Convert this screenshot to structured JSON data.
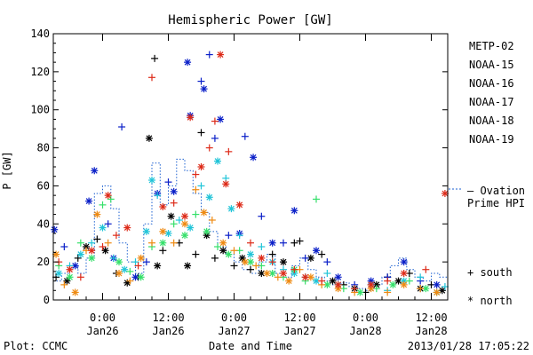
{
  "chart_data": {
    "type": "scatter",
    "title": "Hemispheric Power [GW]",
    "xlabel": "Date and Time",
    "ylabel": "P [GW]",
    "ylim": [
      0,
      140
    ],
    "yticks": [
      0,
      20,
      40,
      60,
      80,
      100,
      120,
      140
    ],
    "xlim_hours": [
      -9,
      63
    ],
    "x_axis_origin": "2013-01-26 00:00 UT",
    "xticks": [
      {
        "hours": 0,
        "time": "0:00",
        "date": "Jan26"
      },
      {
        "hours": 12,
        "time": "12:00",
        "date": "Jan26"
      },
      {
        "hours": 24,
        "time": "0:00",
        "date": "Jan27"
      },
      {
        "hours": 36,
        "time": "12:00",
        "date": "Jan27"
      },
      {
        "hours": 48,
        "time": "0:00",
        "date": "Jan28"
      },
      {
        "hours": 60,
        "time": "12:00",
        "date": "Jan28"
      }
    ],
    "legend_position": "right",
    "marker_legend": {
      "south": "+ south",
      "north": "* north"
    },
    "reference_series": {
      "name": "Ovation Prime HPI",
      "label_line1": "— Ovation",
      "label_line2": "Prime HPI",
      "color": "#1a5fd0",
      "style": "dotted-step"
    },
    "series": [
      {
        "name": "METP-02",
        "color": "#000000",
        "points": [
          [
            -8.5,
            12,
            "+"
          ],
          [
            -6.5,
            10,
            "*"
          ],
          [
            -4.5,
            22,
            "+"
          ],
          [
            -3,
            28,
            "*"
          ],
          [
            -1,
            32,
            "+"
          ],
          [
            0.5,
            26,
            "*"
          ],
          [
            2.5,
            14,
            "+"
          ],
          [
            4.5,
            9,
            "*"
          ],
          [
            6.5,
            12,
            "+"
          ],
          [
            8.5,
            85,
            "*"
          ],
          [
            9.5,
            127,
            "+"
          ],
          [
            10,
            18,
            "*"
          ],
          [
            11,
            26,
            "+"
          ],
          [
            12.5,
            44,
            "*"
          ],
          [
            14,
            30,
            "+"
          ],
          [
            15.5,
            18,
            "*"
          ],
          [
            17,
            24,
            "+"
          ],
          [
            18,
            88,
            "+"
          ],
          [
            19,
            34,
            "*"
          ],
          [
            20.5,
            22,
            "+"
          ],
          [
            22,
            26,
            "*"
          ],
          [
            24,
            18,
            "+"
          ],
          [
            25.5,
            22,
            "*"
          ],
          [
            27,
            16,
            "+"
          ],
          [
            29,
            14,
            "*"
          ],
          [
            31,
            24,
            "+"
          ],
          [
            33,
            20,
            "*"
          ],
          [
            35,
            30,
            "+"
          ],
          [
            36,
            31,
            "+"
          ],
          [
            38,
            22,
            "*"
          ],
          [
            40,
            24,
            "+"
          ],
          [
            42,
            10,
            "*"
          ],
          [
            44,
            8,
            "+"
          ],
          [
            46,
            6,
            "*"
          ],
          [
            48,
            4,
            "+"
          ],
          [
            50,
            8,
            "*"
          ],
          [
            52,
            12,
            "+"
          ],
          [
            54,
            10,
            "*"
          ],
          [
            56,
            14,
            "+"
          ],
          [
            58,
            6,
            "*"
          ],
          [
            60,
            8,
            "+"
          ],
          [
            62,
            5,
            "*"
          ]
        ]
      },
      {
        "name": "NOAA-15",
        "color": "#0a1fc8",
        "points": [
          [
            -8.8,
            37,
            "*"
          ],
          [
            -7,
            28,
            "+"
          ],
          [
            -5,
            18,
            "*"
          ],
          [
            -2.5,
            52,
            "*"
          ],
          [
            -1.5,
            68,
            "*"
          ],
          [
            1,
            40,
            "+"
          ],
          [
            2,
            22,
            "*"
          ],
          [
            3.5,
            91,
            "+"
          ],
          [
            6,
            12,
            "*"
          ],
          [
            8,
            20,
            "+"
          ],
          [
            10,
            56,
            "*"
          ],
          [
            12,
            62,
            "+"
          ],
          [
            13,
            57,
            "*"
          ],
          [
            15.5,
            125,
            "*"
          ],
          [
            16,
            97,
            "*"
          ],
          [
            18,
            115,
            "+"
          ],
          [
            18.5,
            111,
            "*"
          ],
          [
            19.5,
            129,
            "+"
          ],
          [
            20.5,
            85,
            "+"
          ],
          [
            21.5,
            95,
            "*"
          ],
          [
            23,
            34,
            "+"
          ],
          [
            25,
            35,
            "*"
          ],
          [
            26,
            86,
            "+"
          ],
          [
            27.5,
            75,
            "*"
          ],
          [
            29,
            44,
            "+"
          ],
          [
            31,
            30,
            "*"
          ],
          [
            33,
            30,
            "+"
          ],
          [
            35,
            47,
            "*"
          ],
          [
            37,
            22,
            "+"
          ],
          [
            39,
            26,
            "*"
          ],
          [
            41,
            20,
            "+"
          ],
          [
            43,
            12,
            "*"
          ],
          [
            46,
            8,
            "+"
          ],
          [
            49,
            10,
            "*"
          ],
          [
            52,
            12,
            "+"
          ],
          [
            55,
            20,
            "*"
          ],
          [
            58,
            10,
            "+"
          ],
          [
            61,
            8,
            "*"
          ]
        ]
      },
      {
        "name": "NOAA-16",
        "color": "#20c4d8",
        "points": [
          [
            -8,
            14,
            "*"
          ],
          [
            -6,
            18,
            "+"
          ],
          [
            -4,
            24,
            "*"
          ],
          [
            -2,
            30,
            "+"
          ],
          [
            0,
            38,
            "*"
          ],
          [
            2,
            22,
            "+"
          ],
          [
            4,
            16,
            "*"
          ],
          [
            6,
            20,
            "+"
          ],
          [
            8,
            36,
            "*"
          ],
          [
            9,
            63,
            "*"
          ],
          [
            10,
            55,
            "+"
          ],
          [
            12,
            35,
            "*"
          ],
          [
            14,
            42,
            "+"
          ],
          [
            16,
            38,
            "*"
          ],
          [
            18,
            60,
            "+"
          ],
          [
            19.5,
            54,
            "*"
          ],
          [
            21,
            73,
            "*"
          ],
          [
            22.5,
            64,
            "+"
          ],
          [
            23.5,
            48,
            "*"
          ],
          [
            25,
            34,
            "+"
          ],
          [
            27,
            24,
            "*"
          ],
          [
            29,
            28,
            "+"
          ],
          [
            31,
            20,
            "*"
          ],
          [
            33,
            16,
            "+"
          ],
          [
            35,
            14,
            "*"
          ],
          [
            37,
            12,
            "+"
          ],
          [
            39,
            10,
            "*"
          ],
          [
            41,
            14,
            "+"
          ],
          [
            43,
            8,
            "*"
          ],
          [
            46,
            6,
            "+"
          ],
          [
            49,
            8,
            "*"
          ],
          [
            52,
            5,
            "+"
          ],
          [
            55,
            10,
            "*"
          ],
          [
            58,
            12,
            "+"
          ],
          [
            61,
            4,
            "*"
          ],
          [
            62.5,
            7,
            "+"
          ]
        ]
      },
      {
        "name": "NOAA-17",
        "color": "#35e06a",
        "points": [
          [
            -8,
            18,
            "+"
          ],
          [
            -6,
            12,
            "*"
          ],
          [
            -4,
            30,
            "+"
          ],
          [
            -2,
            22,
            "*"
          ],
          [
            0,
            50,
            "+"
          ],
          [
            1.5,
            53,
            "+"
          ],
          [
            3,
            20,
            "*"
          ],
          [
            5,
            15,
            "+"
          ],
          [
            7,
            12,
            "*"
          ],
          [
            9,
            28,
            "+"
          ],
          [
            11,
            30,
            "*"
          ],
          [
            13,
            40,
            "+"
          ],
          [
            15,
            34,
            "*"
          ],
          [
            17,
            45,
            "+"
          ],
          [
            19,
            36,
            "*"
          ],
          [
            21,
            28,
            "+"
          ],
          [
            23,
            24,
            "*"
          ],
          [
            25,
            26,
            "+"
          ],
          [
            27,
            20,
            "*"
          ],
          [
            29,
            18,
            "+"
          ],
          [
            31,
            14,
            "*"
          ],
          [
            33,
            12,
            "+"
          ],
          [
            35,
            16,
            "*"
          ],
          [
            37,
            10,
            "+"
          ],
          [
            39,
            53,
            "+"
          ],
          [
            41,
            8,
            "*"
          ],
          [
            44,
            6,
            "+"
          ],
          [
            47,
            4,
            "*"
          ],
          [
            50,
            6,
            "+"
          ],
          [
            53,
            8,
            "*"
          ],
          [
            56,
            10,
            "+"
          ],
          [
            59,
            6,
            "*"
          ]
        ]
      },
      {
        "name": "NOAA-18",
        "color": "#ee8a12",
        "points": [
          [
            -8.5,
            24,
            "*"
          ],
          [
            -7,
            8,
            "+"
          ],
          [
            -5,
            4,
            "*"
          ],
          [
            -3,
            26,
            "+"
          ],
          [
            -1,
            45,
            "*"
          ],
          [
            1,
            30,
            "+"
          ],
          [
            3,
            14,
            "*"
          ],
          [
            5,
            10,
            "+"
          ],
          [
            7,
            22,
            "*"
          ],
          [
            9,
            30,
            "+"
          ],
          [
            11,
            36,
            "*"
          ],
          [
            13,
            30,
            "+"
          ],
          [
            15,
            40,
            "*"
          ],
          [
            17,
            58,
            "+"
          ],
          [
            18.5,
            46,
            "*"
          ],
          [
            20,
            42,
            "+"
          ],
          [
            22,
            30,
            "*"
          ],
          [
            24,
            26,
            "+"
          ],
          [
            26,
            20,
            "*"
          ],
          [
            28,
            18,
            "+"
          ],
          [
            30,
            14,
            "*"
          ],
          [
            32,
            12,
            "+"
          ],
          [
            34,
            10,
            "*"
          ],
          [
            36,
            16,
            "+"
          ],
          [
            38,
            12,
            "*"
          ],
          [
            40,
            8,
            "+"
          ],
          [
            43,
            6,
            "*"
          ],
          [
            46,
            4,
            "+"
          ],
          [
            49,
            6,
            "*"
          ],
          [
            52,
            4,
            "+"
          ],
          [
            55,
            8,
            "*"
          ],
          [
            58,
            6,
            "+"
          ],
          [
            61,
            4,
            "*"
          ]
        ]
      },
      {
        "name": "NOAA-19",
        "color": "#dd2a18",
        "points": [
          [
            -8,
            20,
            "+"
          ],
          [
            -6,
            16,
            "*"
          ],
          [
            -4,
            12,
            "+"
          ],
          [
            -2,
            26,
            "*"
          ],
          [
            0,
            28,
            "+"
          ],
          [
            1,
            55,
            "*"
          ],
          [
            2.5,
            34,
            "+"
          ],
          [
            4.5,
            38,
            "*"
          ],
          [
            6.5,
            18,
            "+"
          ],
          [
            9,
            117,
            "+"
          ],
          [
            11,
            49,
            "*"
          ],
          [
            13,
            51,
            "+"
          ],
          [
            15,
            44,
            "*"
          ],
          [
            16,
            96,
            "*"
          ],
          [
            17,
            66,
            "+"
          ],
          [
            18,
            70,
            "*"
          ],
          [
            19.5,
            80,
            "+"
          ],
          [
            20.5,
            94,
            "+"
          ],
          [
            21.5,
            129,
            "*"
          ],
          [
            22.5,
            61,
            "*"
          ],
          [
            23,
            78,
            "+"
          ],
          [
            25,
            50,
            "*"
          ],
          [
            27,
            30,
            "+"
          ],
          [
            29,
            22,
            "*"
          ],
          [
            31,
            20,
            "+"
          ],
          [
            33,
            14,
            "*"
          ],
          [
            35,
            16,
            "+"
          ],
          [
            37,
            12,
            "*"
          ],
          [
            40,
            10,
            "+"
          ],
          [
            43,
            8,
            "*"
          ],
          [
            46,
            6,
            "+"
          ],
          [
            49,
            8,
            "*"
          ],
          [
            52,
            10,
            "+"
          ],
          [
            55,
            14,
            "*"
          ],
          [
            59,
            16,
            "+"
          ],
          [
            62.5,
            56,
            "*"
          ]
        ]
      }
    ],
    "hpi_steps": [
      [
        -9,
        10
      ],
      [
        -7.5,
        14
      ],
      [
        -6,
        18
      ],
      [
        -4.5,
        14
      ],
      [
        -3,
        22
      ],
      [
        -1.5,
        56
      ],
      [
        0,
        60
      ],
      [
        1.5,
        48
      ],
      [
        3,
        30
      ],
      [
        4.5,
        20
      ],
      [
        6,
        14
      ],
      [
        7.5,
        40
      ],
      [
        9,
        72
      ],
      [
        10.5,
        50
      ],
      [
        12,
        60
      ],
      [
        13.5,
        74
      ],
      [
        15,
        68
      ],
      [
        16.5,
        56
      ],
      [
        18,
        46
      ],
      [
        19.5,
        36
      ],
      [
        21,
        28
      ],
      [
        22.5,
        24
      ],
      [
        24,
        20
      ],
      [
        25.5,
        16
      ],
      [
        27,
        14
      ],
      [
        28.5,
        20
      ],
      [
        30,
        24
      ],
      [
        31.5,
        14
      ],
      [
        33,
        12
      ],
      [
        34.5,
        18
      ],
      [
        36,
        22
      ],
      [
        37.5,
        16
      ],
      [
        39,
        12
      ],
      [
        40.5,
        10
      ],
      [
        42,
        8
      ],
      [
        43.5,
        9
      ],
      [
        45,
        7
      ],
      [
        46.5,
        6
      ],
      [
        48,
        5
      ],
      [
        49.5,
        8
      ],
      [
        51,
        12
      ],
      [
        52.5,
        18
      ],
      [
        54,
        22
      ],
      [
        55.5,
        16
      ],
      [
        57,
        12
      ],
      [
        58.5,
        10
      ],
      [
        60,
        14
      ],
      [
        61.5,
        12
      ]
    ]
  },
  "footer": {
    "left": "Plot: CCMC",
    "center": "Date and Time",
    "right": "2013/01/28 17:05:22"
  }
}
